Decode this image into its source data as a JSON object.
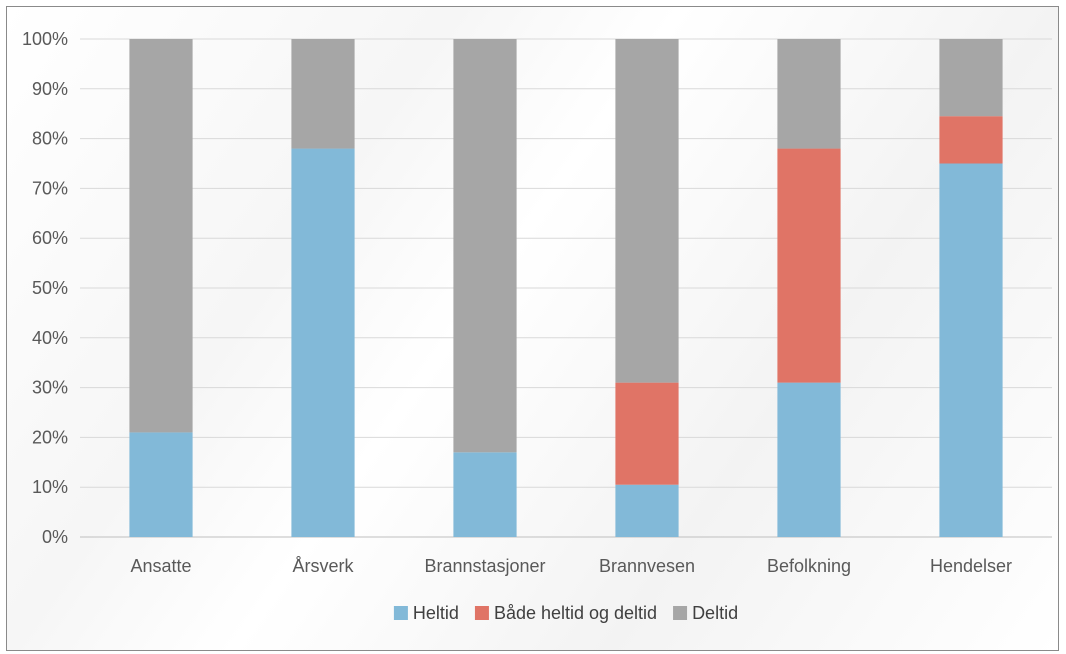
{
  "chart_data": {
    "type": "bar",
    "stacked": true,
    "percent": true,
    "title": "",
    "xlabel": "",
    "ylabel": "",
    "ylim": [
      0,
      100
    ],
    "yticks": [
      "0%",
      "10%",
      "20%",
      "30%",
      "40%",
      "50%",
      "60%",
      "70%",
      "80%",
      "90%",
      "100%"
    ],
    "grid": true,
    "legend_position": "bottom",
    "categories": [
      "Ansatte",
      "Årsverk",
      "Brannstasjoner",
      "Brannvesen",
      "Befolkning",
      "Hendelser"
    ],
    "series": [
      {
        "name": "Heltid",
        "color": "#82B9D8",
        "values": [
          21,
          78,
          17,
          10.5,
          31,
          75
        ]
      },
      {
        "name": "Både heltid og deltid",
        "color": "#E07466",
        "values": [
          0,
          0,
          0,
          20.5,
          47,
          9.5
        ]
      },
      {
        "name": "Deltid",
        "color": "#A6A6A6",
        "values": [
          79,
          22,
          83,
          69,
          22,
          15.5
        ]
      }
    ]
  }
}
